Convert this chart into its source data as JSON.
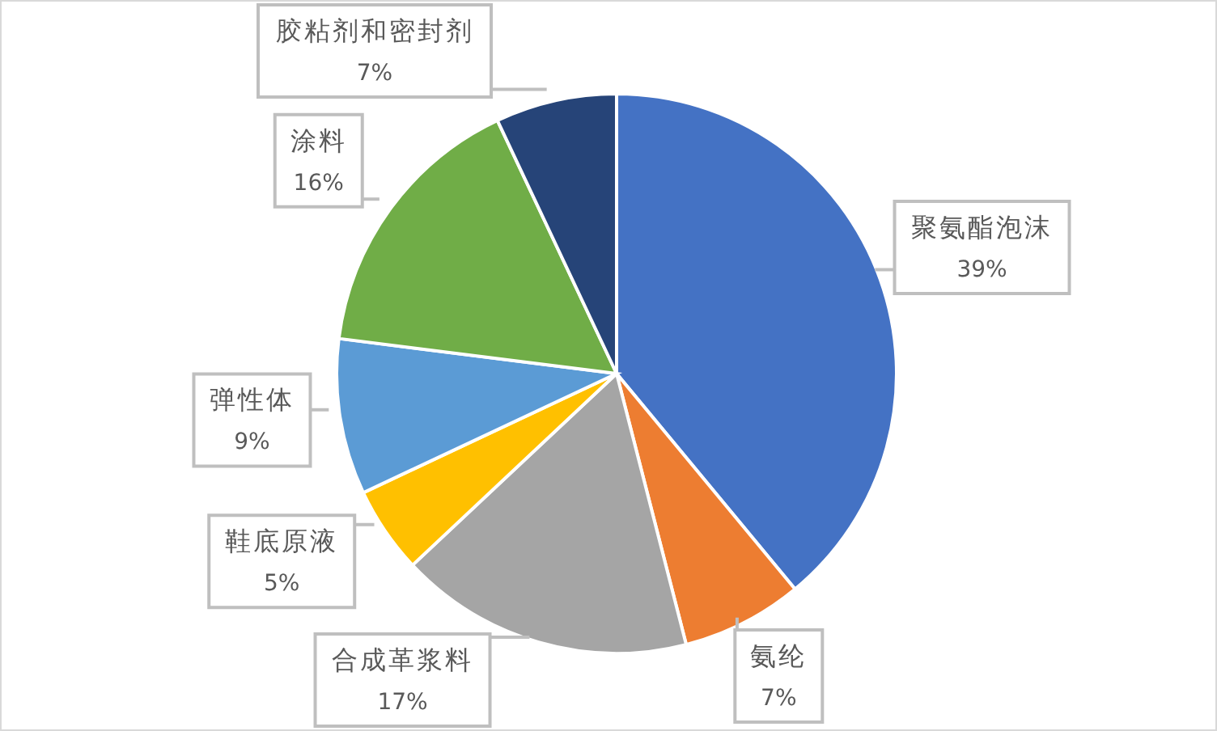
{
  "chart_data": {
    "type": "pie",
    "categories": [
      "聚氨酯泡沫",
      "氨纶",
      "合成革浆料",
      "鞋底原液",
      "弹性体",
      "涂料",
      "胶粘剂和密封剂"
    ],
    "values": [
      39,
      7,
      17,
      5,
      9,
      16,
      7
    ],
    "colors": [
      "#4472c4",
      "#ed7d31",
      "#a5a5a5",
      "#ffc000",
      "#5b9bd5",
      "#70ad47",
      "#264478"
    ],
    "value_labels": [
      "39%",
      "7%",
      "17%",
      "5%",
      "9%",
      "16%",
      "7%"
    ]
  }
}
